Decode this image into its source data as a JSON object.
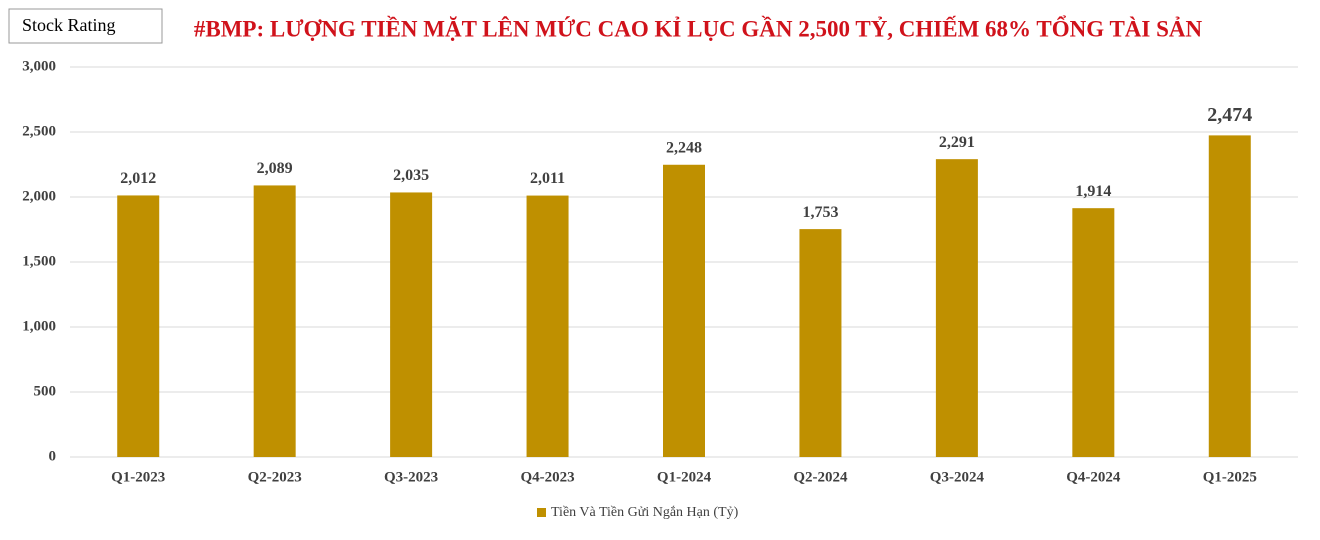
{
  "badge": "Stock Rating",
  "chart_data": {
    "type": "bar",
    "title": "#BMP: LƯỢNG TIỀN MẶT LÊN MỨC CAO KỈ LỤC GẦN 2,500 TỶ, CHIẾM 68% TỔNG TÀI SẢN",
    "categories": [
      "Q1-2023",
      "Q2-2023",
      "Q3-2023",
      "Q4-2023",
      "Q1-2024",
      "Q2-2024",
      "Q3-2024",
      "Q4-2024",
      "Q1-2025"
    ],
    "series": [
      {
        "name": "Tiền Và Tiền Gửi Ngắn Hạn (Tỷ)",
        "color": "#bf9000",
        "values": [
          2012,
          2089,
          2035,
          2011,
          2248,
          1753,
          2291,
          1914,
          2474
        ],
        "value_labels": [
          "2,012",
          "2,089",
          "2,035",
          "2,011",
          "2,248",
          "1,753",
          "2,291",
          "1,914",
          "2,474"
        ]
      }
    ],
    "ylim": [
      0,
      3000
    ],
    "yticks": [
      0,
      500,
      {
        "value": 1000,
        "label": "1,000"
      },
      {
        "value": 1500,
        "label": "1,500"
      },
      {
        "value": 2000,
        "label": "2,000"
      },
      {
        "value": 2500,
        "label": "2,500"
      },
      {
        "value": 3000,
        "label": "3,000"
      }
    ],
    "grid": true,
    "legend": "bottom",
    "title_color": "#d0121b"
  }
}
